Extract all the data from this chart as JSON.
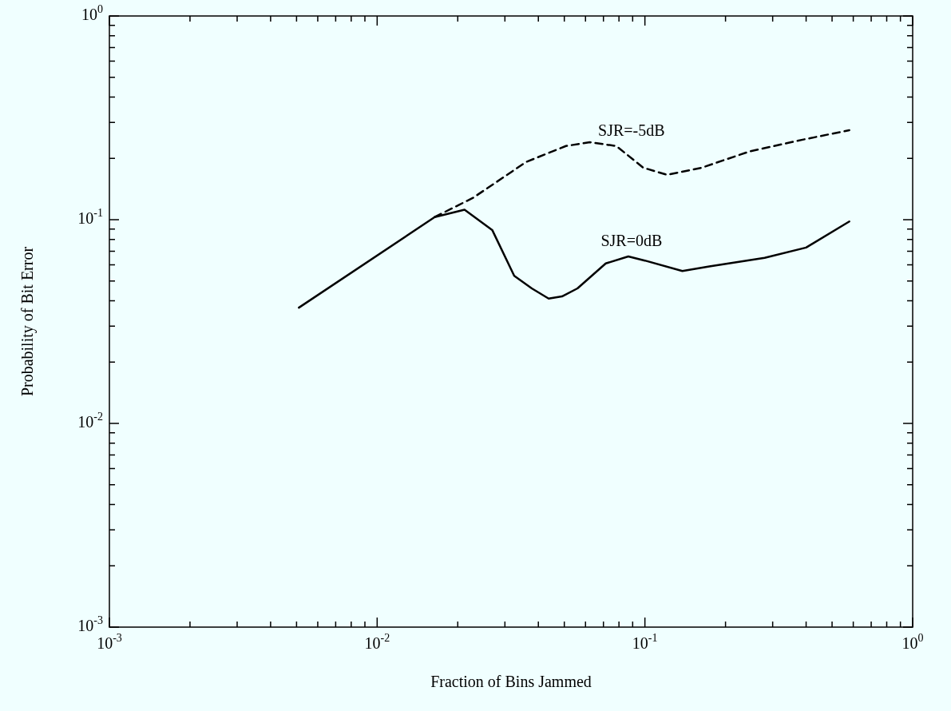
{
  "chart_data": {
    "type": "line",
    "xlabel": "Fraction of Bins Jammed",
    "ylabel": "Probability of Bit Error",
    "log": "xy",
    "grid": false,
    "xlim": [
      0.001,
      1
    ],
    "ylim": [
      0.001,
      1
    ],
    "xticks": [
      {
        "value": 0.001,
        "label": "10$^{-3}$"
      },
      {
        "value": 0.002,
        "label": null
      },
      {
        "value": 0.003,
        "label": null
      },
      {
        "value": 0.004,
        "label": null
      },
      {
        "value": 0.005,
        "label": null
      },
      {
        "value": 0.006,
        "label": null
      },
      {
        "value": 0.007,
        "label": null
      },
      {
        "value": 0.008,
        "label": null
      },
      {
        "value": 0.009,
        "label": null
      },
      {
        "value": 0.01,
        "label": "10$^{-2}$"
      },
      {
        "value": 0.02,
        "label": null
      },
      {
        "value": 0.03,
        "label": null
      },
      {
        "value": 0.04,
        "label": null
      },
      {
        "value": 0.05,
        "label": null
      },
      {
        "value": 0.06,
        "label": null
      },
      {
        "value": 0.07,
        "label": null
      },
      {
        "value": 0.08,
        "label": null
      },
      {
        "value": 0.09,
        "label": null
      },
      {
        "value": 0.1,
        "label": "10$^{-1}$"
      },
      {
        "value": 0.2,
        "label": null
      },
      {
        "value": 0.3,
        "label": null
      },
      {
        "value": 0.4,
        "label": null
      },
      {
        "value": 0.5,
        "label": null
      },
      {
        "value": 0.6,
        "label": null
      },
      {
        "value": 0.7,
        "label": null
      },
      {
        "value": 0.8,
        "label": null
      },
      {
        "value": 0.9,
        "label": null
      },
      {
        "value": 1,
        "label": "10$^{0}$"
      }
    ],
    "yticks": [
      {
        "value": 0.001,
        "label": "10$^{-3}$"
      },
      {
        "value": 0.002,
        "label": null
      },
      {
        "value": 0.003,
        "label": null
      },
      {
        "value": 0.004,
        "label": null
      },
      {
        "value": 0.005,
        "label": null
      },
      {
        "value": 0.006,
        "label": null
      },
      {
        "value": 0.007,
        "label": null
      },
      {
        "value": 0.008,
        "label": null
      },
      {
        "value": 0.009,
        "label": null
      },
      {
        "value": 0.01,
        "label": "10$^{-2}$"
      },
      {
        "value": 0.02,
        "label": null
      },
      {
        "value": 0.03,
        "label": null
      },
      {
        "value": 0.04,
        "label": null
      },
      {
        "value": 0.05,
        "label": null
      },
      {
        "value": 0.06,
        "label": null
      },
      {
        "value": 0.07,
        "label": null
      },
      {
        "value": 0.08,
        "label": null
      },
      {
        "value": 0.09,
        "label": null
      },
      {
        "value": 0.1,
        "label": "10$^{-1}$"
      },
      {
        "value": 0.2,
        "label": null
      },
      {
        "value": 0.3,
        "label": null
      },
      {
        "value": 0.4,
        "label": null
      },
      {
        "value": 0.5,
        "label": null
      },
      {
        "value": 0.6,
        "label": null
      },
      {
        "value": 0.7,
        "label": null
      },
      {
        "value": 0.8,
        "label": null
      },
      {
        "value": 0.9,
        "label": null
      },
      {
        "value": 1,
        "label": "10$^{0}$"
      }
    ],
    "series": [
      {
        "name": "SJR=0dB",
        "color": "#000000",
        "line_style": "solid",
        "x": [
          0.0051,
          0.0164,
          0.0212,
          0.0269,
          0.0325,
          0.0378,
          0.0437,
          0.049,
          0.056,
          0.0714,
          0.0867,
          0.1,
          0.138,
          0.174,
          0.28,
          0.4,
          0.58
        ],
        "values": [
          0.037,
          0.103,
          0.112,
          0.089,
          0.053,
          0.046,
          0.041,
          0.042,
          0.046,
          0.061,
          0.066,
          0.063,
          0.056,
          0.059,
          0.065,
          0.073,
          0.098
        ]
      },
      {
        "name": "SJR=-5dB",
        "color": "#000000",
        "line_style": "dashed",
        "x": [
          0.0164,
          0.0228,
          0.036,
          0.0507,
          0.0623,
          0.0782,
          0.0986,
          0.121,
          0.163,
          0.245,
          0.388,
          0.58
        ],
        "values": [
          0.103,
          0.128,
          0.192,
          0.23,
          0.24,
          0.23,
          0.18,
          0.166,
          0.18,
          0.216,
          0.247,
          0.275
        ]
      }
    ]
  }
}
